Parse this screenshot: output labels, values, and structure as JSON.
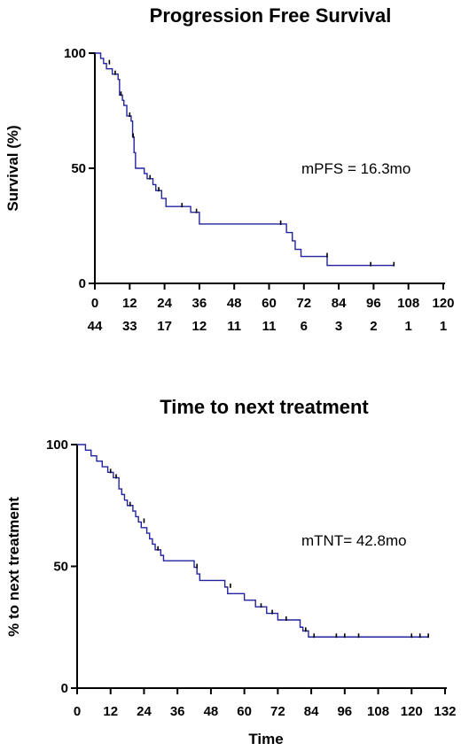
{
  "chart_data": [
    {
      "type": "line",
      "subtype": "kaplan-meier",
      "title": "Progression Free Survival",
      "ylabel": "Survival (%)",
      "xlabel": "",
      "xlim": [
        0,
        120
      ],
      "ylim": [
        0,
        100
      ],
      "xticks": [
        0,
        12,
        24,
        36,
        48,
        60,
        72,
        84,
        96,
        108,
        120
      ],
      "yticks": [
        0,
        50,
        100
      ],
      "number_at_risk": [
        44,
        33,
        17,
        12,
        11,
        11,
        6,
        3,
        2,
        1,
        1
      ],
      "annotation": "mPFS = 16.3mo",
      "color": "#2323a0",
      "series": [
        {
          "steps": [
            [
              0,
              100
            ],
            [
              2,
              97.7
            ],
            [
              3,
              95.5
            ],
            [
              4,
              93.2
            ],
            [
              6,
              90.9
            ],
            [
              8,
              88.6
            ],
            [
              8.5,
              81.8
            ],
            [
              9.5,
              79.5
            ],
            [
              10,
              77.3
            ],
            [
              11,
              72.7
            ],
            [
              12.5,
              70.5
            ],
            [
              13,
              63.6
            ],
            [
              13.5,
              56.8
            ],
            [
              14,
              50
            ],
            [
              17,
              47.7
            ],
            [
              18,
              45.5
            ],
            [
              20,
              42.9
            ],
            [
              21,
              40.3
            ],
            [
              23,
              36.9
            ],
            [
              24.5,
              33.4
            ],
            [
              33,
              30.9
            ],
            [
              36,
              25.8
            ],
            [
              66,
              22.1
            ],
            [
              68,
              18.5
            ],
            [
              69,
              14.8
            ],
            [
              71,
              11.7
            ],
            [
              80,
              7.8
            ],
            [
              103,
              7.8
            ]
          ],
          "censored": [
            [
              5,
              95.5
            ],
            [
              7,
              90.9
            ],
            [
              9,
              81.8
            ],
            [
              12,
              72.7
            ],
            [
              13.2,
              63.6
            ],
            [
              19,
              45.5
            ],
            [
              22,
              40.3
            ],
            [
              30,
              33.4
            ],
            [
              35,
              30.9
            ],
            [
              64,
              25.8
            ],
            [
              80,
              11.7
            ],
            [
              95,
              7.8
            ],
            [
              103,
              7.8
            ]
          ]
        }
      ]
    },
    {
      "type": "line",
      "subtype": "kaplan-meier",
      "title": "Time to next treatment",
      "ylabel": "% to next treatment",
      "xlabel": "Time",
      "xlim": [
        0,
        132
      ],
      "ylim": [
        0,
        100
      ],
      "xticks": [
        0,
        12,
        24,
        36,
        48,
        60,
        72,
        84,
        96,
        108,
        120,
        132
      ],
      "yticks": [
        0,
        50,
        100
      ],
      "annotation": "mTNT= 42.8mo",
      "color": "#2323a0",
      "series": [
        {
          "steps": [
            [
              0,
              100
            ],
            [
              3,
              97.7
            ],
            [
              5,
              95.4
            ],
            [
              7,
              93.2
            ],
            [
              9,
              90.9
            ],
            [
              11,
              88.6
            ],
            [
              13,
              86.4
            ],
            [
              15,
              81.8
            ],
            [
              16,
              79.5
            ],
            [
              17,
              77.2
            ],
            [
              18,
              75
            ],
            [
              20,
              72.7
            ],
            [
              21,
              70.4
            ],
            [
              22,
              68.2
            ],
            [
              23,
              65.9
            ],
            [
              25,
              63.6
            ],
            [
              26,
              61.3
            ],
            [
              27,
              59.1
            ],
            [
              28,
              56.8
            ],
            [
              30,
              54.5
            ],
            [
              31,
              52.3
            ],
            [
              42,
              49.6
            ],
            [
              43,
              46.9
            ],
            [
              44,
              44.2
            ],
            [
              53,
              41.5
            ],
            [
              54,
              38.8
            ],
            [
              60,
              36.1
            ],
            [
              64,
              33.4
            ],
            [
              68,
              30.7
            ],
            [
              72,
              28.0
            ],
            [
              80,
              25.0
            ],
            [
              81,
              23.5
            ],
            [
              83,
              21.0
            ],
            [
              126,
              21.0
            ]
          ],
          "censored": [
            [
              12,
              88.6
            ],
            [
              14,
              86.4
            ],
            [
              19,
              75
            ],
            [
              24,
              68.2
            ],
            [
              29,
              56.8
            ],
            [
              43,
              49.6
            ],
            [
              55,
              41.5
            ],
            [
              66,
              33.4
            ],
            [
              70,
              30.7
            ],
            [
              75,
              28.0
            ],
            [
              82,
              23.5
            ],
            [
              85,
              21.0
            ],
            [
              93,
              21.0
            ],
            [
              96,
              21.0
            ],
            [
              101,
              21.0
            ],
            [
              120,
              21.0
            ],
            [
              123,
              21.0
            ],
            [
              126,
              21.0
            ]
          ]
        }
      ]
    }
  ]
}
